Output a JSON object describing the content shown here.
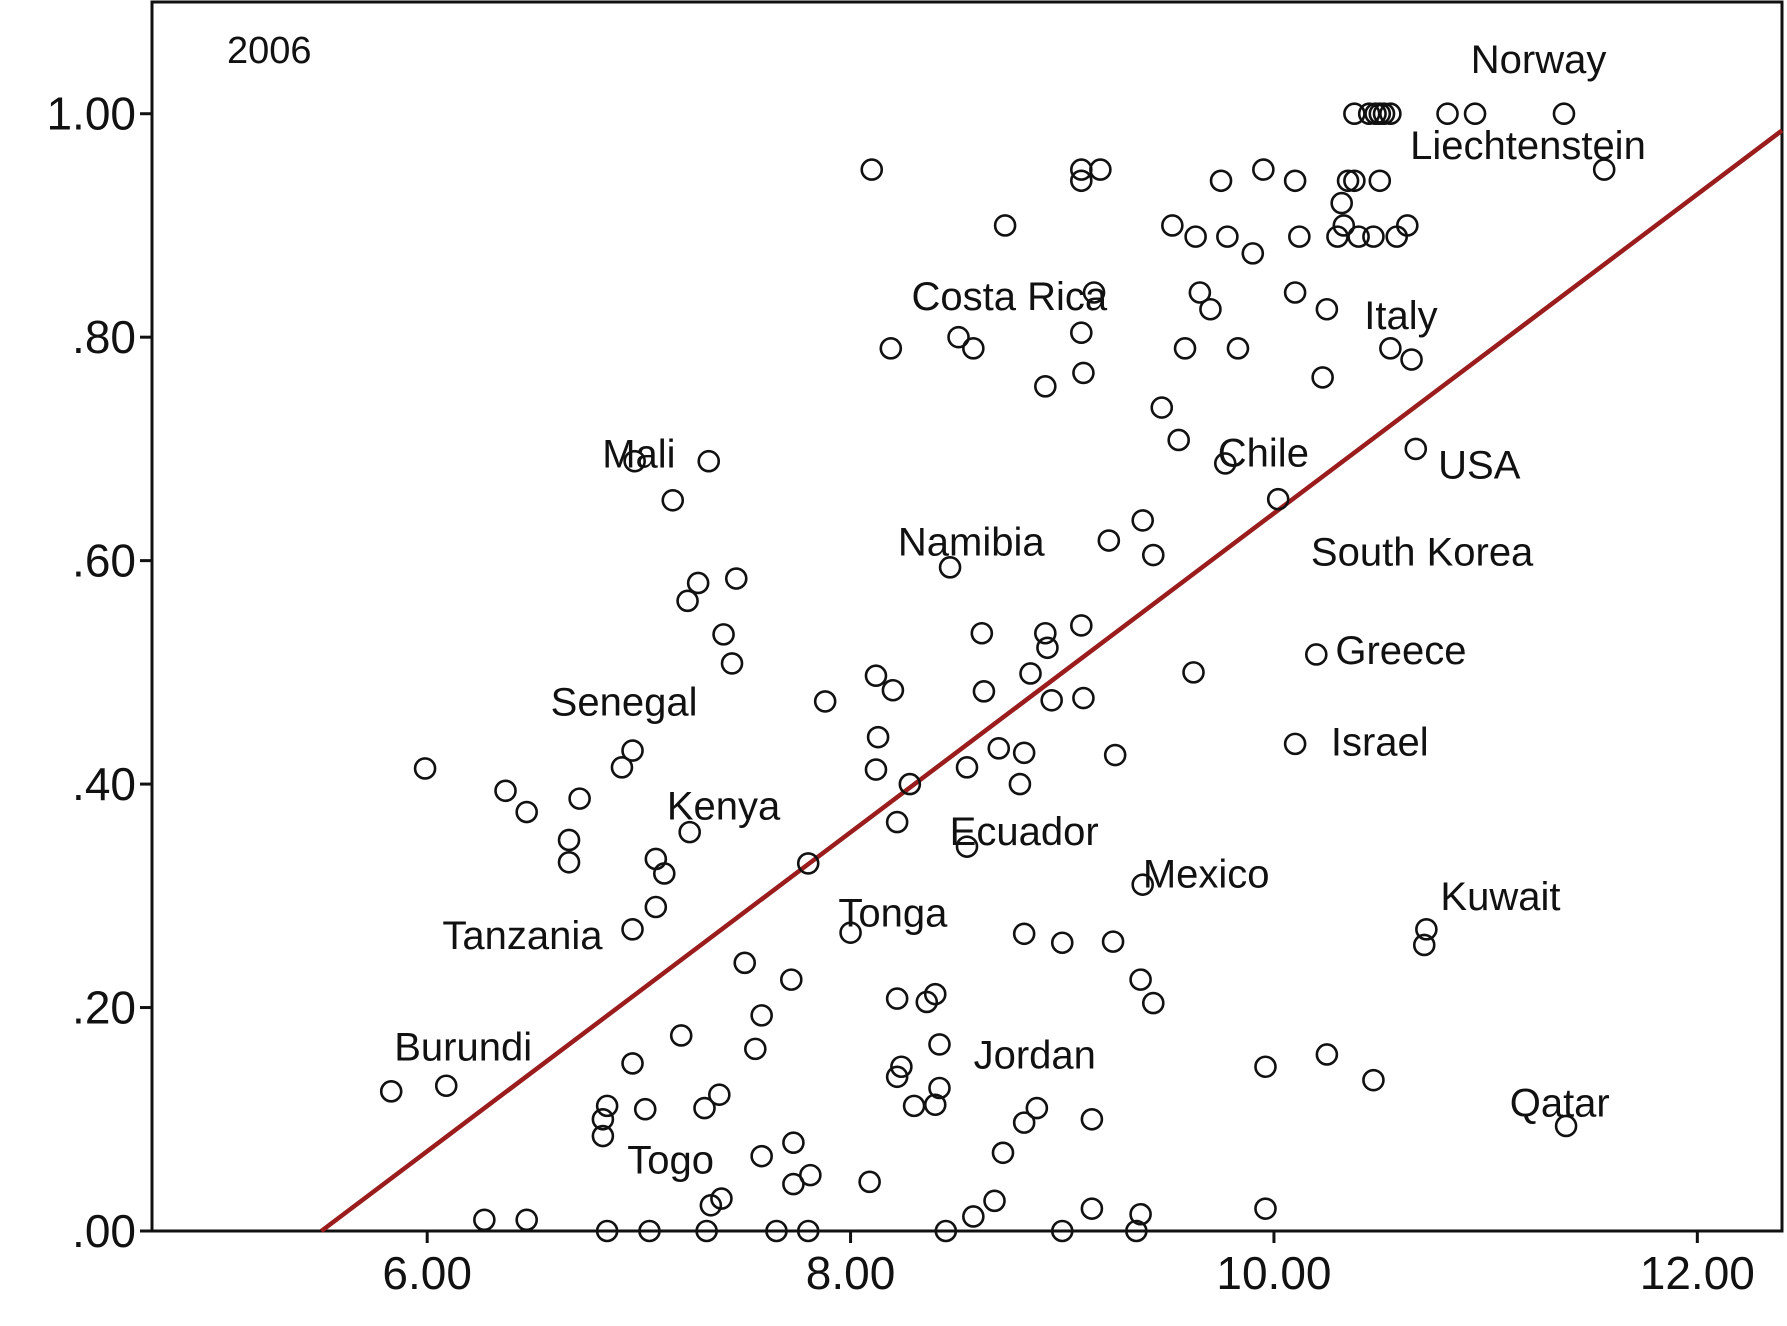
{
  "chart_data": {
    "type": "scatter",
    "annotation": "2006",
    "xlim": [
      4.7,
      12.4
    ],
    "ylim": [
      0,
      1.1
    ],
    "x_ticks": [
      6,
      8,
      10,
      12
    ],
    "x_tick_labels": [
      "6.00",
      "8.00",
      "10.00",
      "12.00"
    ],
    "y_ticks": [
      0,
      0.2,
      0.4,
      0.6,
      0.8,
      1.0
    ],
    "y_tick_labels": [
      ".00",
      ".20",
      ".40",
      ".60",
      ".80",
      "1.00"
    ],
    "grid": false,
    "fit_line": {
      "color": "#9b1c1c",
      "x": [
        5.5,
        12.4
      ],
      "y": [
        0.0,
        0.985
      ]
    },
    "labels": [
      {
        "text": "Norway",
        "x": 11.25,
        "y": 1.049
      },
      {
        "text": "Liechtenstein",
        "x": 11.2,
        "y": 0.972
      },
      {
        "text": "Costa Rica",
        "x": 8.75,
        "y": 0.837
      },
      {
        "text": "Italy",
        "x": 10.6,
        "y": 0.82
      },
      {
        "text": "Mali",
        "x": 7.0,
        "y": 0.696
      },
      {
        "text": "Chile",
        "x": 9.95,
        "y": 0.697
      },
      {
        "text": "USA",
        "x": 10.97,
        "y": 0.686
      },
      {
        "text": "Namibia",
        "x": 8.57,
        "y": 0.617
      },
      {
        "text": "South Korea",
        "x": 10.7,
        "y": 0.608
      },
      {
        "text": "Greece",
        "x": 10.6,
        "y": 0.52
      },
      {
        "text": "Senegal",
        "x": 6.93,
        "y": 0.474
      },
      {
        "text": "Israel",
        "x": 10.5,
        "y": 0.438
      },
      {
        "text": "Kenya",
        "x": 7.4,
        "y": 0.381
      },
      {
        "text": "Ecuador",
        "x": 8.82,
        "y": 0.358
      },
      {
        "text": "Mexico",
        "x": 9.68,
        "y": 0.32
      },
      {
        "text": "Kuwait",
        "x": 11.07,
        "y": 0.3
      },
      {
        "text": "Tonga",
        "x": 8.2,
        "y": 0.285
      },
      {
        "text": "Tanzania",
        "x": 6.45,
        "y": 0.265
      },
      {
        "text": "Burundi",
        "x": 6.17,
        "y": 0.165
      },
      {
        "text": "Jordan",
        "x": 8.87,
        "y": 0.158
      },
      {
        "text": "Qatar",
        "x": 11.35,
        "y": 0.115
      },
      {
        "text": "Togo",
        "x": 7.15,
        "y": 0.064
      }
    ],
    "points": [
      [
        10.38,
        1.0
      ],
      [
        10.45,
        1.0
      ],
      [
        10.5,
        1.0
      ],
      [
        10.55,
        1.0
      ],
      [
        10.48,
        1.0
      ],
      [
        10.52,
        1.0
      ],
      [
        10.82,
        1.0
      ],
      [
        10.95,
        1.0
      ],
      [
        11.37,
        1.0
      ],
      [
        11.56,
        0.95
      ],
      [
        10.35,
        0.94
      ],
      [
        10.38,
        0.94
      ],
      [
        10.5,
        0.94
      ],
      [
        10.32,
        0.92
      ],
      [
        10.33,
        0.9
      ],
      [
        10.63,
        0.9
      ],
      [
        10.3,
        0.89
      ],
      [
        10.4,
        0.89
      ],
      [
        10.47,
        0.89
      ],
      [
        10.58,
        0.89
      ],
      [
        10.55,
        0.79
      ],
      [
        10.65,
        0.78
      ],
      [
        10.67,
        0.7
      ],
      [
        10.72,
        0.27
      ],
      [
        10.71,
        0.256
      ],
      [
        11.38,
        0.094
      ],
      [
        10.47,
        0.135
      ],
      [
        10.25,
        0.158
      ],
      [
        10.2,
        0.516
      ],
      [
        10.1,
        0.436
      ],
      [
        10.02,
        0.655
      ],
      [
        9.95,
        0.95
      ],
      [
        10.1,
        0.94
      ],
      [
        9.75,
        0.94
      ],
      [
        9.52,
        0.9
      ],
      [
        9.63,
        0.89
      ],
      [
        9.78,
        0.89
      ],
      [
        10.12,
        0.89
      ],
      [
        9.9,
        0.875
      ],
      [
        9.65,
        0.84
      ],
      [
        9.7,
        0.825
      ],
      [
        10.1,
        0.84
      ],
      [
        10.25,
        0.825
      ],
      [
        9.58,
        0.79
      ],
      [
        9.83,
        0.79
      ],
      [
        10.23,
        0.764
      ],
      [
        9.47,
        0.737
      ],
      [
        9.55,
        0.708
      ],
      [
        9.77,
        0.687
      ],
      [
        9.38,
        0.636
      ],
      [
        9.22,
        0.618
      ],
      [
        9.43,
        0.605
      ],
      [
        9.09,
        0.542
      ],
      [
        9.62,
        0.5
      ],
      [
        9.1,
        0.477
      ],
      [
        9.25,
        0.426
      ],
      [
        9.38,
        0.31
      ],
      [
        9.0,
        0.258
      ],
      [
        9.24,
        0.259
      ],
      [
        9.37,
        0.225
      ],
      [
        9.43,
        0.204
      ],
      [
        9.96,
        0.147
      ],
      [
        9.14,
        0.1
      ],
      [
        9.14,
        0.02
      ],
      [
        9.37,
        0.015
      ],
      [
        9.96,
        0.02
      ],
      [
        9.0,
        0.0
      ],
      [
        9.35,
        0.0
      ],
      [
        9.09,
        0.95
      ],
      [
        9.18,
        0.95
      ],
      [
        9.09,
        0.94
      ],
      [
        9.15,
        0.84
      ],
      [
        9.09,
        0.804
      ],
      [
        9.1,
        0.768
      ],
      [
        8.92,
        0.756
      ],
      [
        8.73,
        0.9
      ],
      [
        8.51,
        0.8
      ],
      [
        8.58,
        0.79
      ],
      [
        8.19,
        0.79
      ],
      [
        8.47,
        0.594
      ],
      [
        8.62,
        0.535
      ],
      [
        8.92,
        0.535
      ],
      [
        8.93,
        0.522
      ],
      [
        8.85,
        0.499
      ],
      [
        8.63,
        0.483
      ],
      [
        8.95,
        0.475
      ],
      [
        8.7,
        0.432
      ],
      [
        8.82,
        0.428
      ],
      [
        8.55,
        0.415
      ],
      [
        8.8,
        0.4
      ],
      [
        8.55,
        0.344
      ],
      [
        8.82,
        0.266
      ],
      [
        8.36,
        0.205
      ],
      [
        8.4,
        0.212
      ],
      [
        8.22,
        0.208
      ],
      [
        8.42,
        0.167
      ],
      [
        8.24,
        0.147
      ],
      [
        8.22,
        0.138
      ],
      [
        8.42,
        0.128
      ],
      [
        8.3,
        0.112
      ],
      [
        8.4,
        0.113
      ],
      [
        8.88,
        0.11
      ],
      [
        8.82,
        0.097
      ],
      [
        8.72,
        0.07
      ],
      [
        8.68,
        0.027
      ],
      [
        8.58,
        0.013
      ],
      [
        8.09,
        0.044
      ],
      [
        8.45,
        0.0
      ],
      [
        8.1,
        0.95
      ],
      [
        8.12,
        0.497
      ],
      [
        8.2,
        0.484
      ],
      [
        7.88,
        0.474
      ],
      [
        8.13,
        0.442
      ],
      [
        8.12,
        0.413
      ],
      [
        8.28,
        0.4
      ],
      [
        8.22,
        0.366
      ],
      [
        7.8,
        0.329
      ],
      [
        8.0,
        0.267
      ],
      [
        7.5,
        0.24
      ],
      [
        7.72,
        0.225
      ],
      [
        7.58,
        0.193
      ],
      [
        7.55,
        0.163
      ],
      [
        7.73,
        0.079
      ],
      [
        7.58,
        0.067
      ],
      [
        7.73,
        0.042
      ],
      [
        7.81,
        0.05
      ],
      [
        7.65,
        0.0
      ],
      [
        7.8,
        0.0
      ],
      [
        7.33,
        0.689
      ],
      [
        7.16,
        0.654
      ],
      [
        7.28,
        0.58
      ],
      [
        7.46,
        0.584
      ],
      [
        7.23,
        0.564
      ],
      [
        7.4,
        0.534
      ],
      [
        7.44,
        0.508
      ],
      [
        7.24,
        0.357
      ],
      [
        7.38,
        0.122
      ],
      [
        7.31,
        0.11
      ],
      [
        7.39,
        0.029
      ],
      [
        7.34,
        0.023
      ],
      [
        7.32,
        0.0
      ],
      [
        6.98,
        0.689
      ],
      [
        6.97,
        0.43
      ],
      [
        6.92,
        0.415
      ],
      [
        6.72,
        0.387
      ],
      [
        6.67,
        0.35
      ],
      [
        6.67,
        0.33
      ],
      [
        7.08,
        0.333
      ],
      [
        7.12,
        0.32
      ],
      [
        7.08,
        0.29
      ],
      [
        6.97,
        0.27
      ],
      [
        7.2,
        0.175
      ],
      [
        6.97,
        0.15
      ],
      [
        6.85,
        0.112
      ],
      [
        7.03,
        0.109
      ],
      [
        6.83,
        0.1
      ],
      [
        6.83,
        0.085
      ],
      [
        6.85,
        0.0
      ],
      [
        7.05,
        0.0
      ],
      [
        5.99,
        0.414
      ],
      [
        6.37,
        0.394
      ],
      [
        6.47,
        0.375
      ],
      [
        5.83,
        0.125
      ],
      [
        6.09,
        0.13
      ],
      [
        6.27,
        0.01
      ],
      [
        6.47,
        0.01
      ]
    ]
  }
}
